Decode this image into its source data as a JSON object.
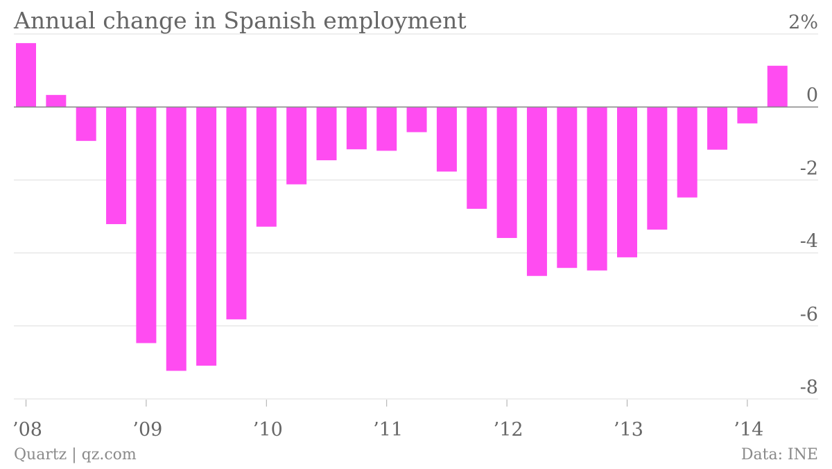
{
  "chart_data": {
    "type": "bar",
    "title": "Annual change in Spanish employment",
    "source": "Data: INE",
    "credit": "Quartz | qz.com",
    "xlabel": "",
    "ylabel": "",
    "ylim": [
      -8,
      2
    ],
    "y_ticks": [
      {
        "value": 2,
        "label": "2%"
      },
      {
        "value": 0,
        "label": "0"
      },
      {
        "value": -2,
        "label": "-2"
      },
      {
        "value": -4,
        "label": "-4"
      },
      {
        "value": -6,
        "label": "-6"
      },
      {
        "value": -8,
        "label": "-8"
      }
    ],
    "x_ticks": [
      {
        "index": 0,
        "label": "’08"
      },
      {
        "index": 4,
        "label": "’09"
      },
      {
        "index": 8,
        "label": "’10"
      },
      {
        "index": 12,
        "label": "’11"
      },
      {
        "index": 16,
        "label": "’12"
      },
      {
        "index": 20,
        "label": "’13"
      },
      {
        "index": 24,
        "label": "’14"
      }
    ],
    "categories": [
      "Q1 2008",
      "Q2 2008",
      "Q3 2008",
      "Q4 2008",
      "Q1 2009",
      "Q2 2009",
      "Q3 2009",
      "Q4 2009",
      "Q1 2010",
      "Q2 2010",
      "Q3 2010",
      "Q4 2010",
      "Q1 2011",
      "Q2 2011",
      "Q3 2011",
      "Q4 2011",
      "Q1 2012",
      "Q2 2012",
      "Q3 2012",
      "Q4 2012",
      "Q1 2013",
      "Q2 2013",
      "Q3 2013",
      "Q4 2013",
      "Q1 2014",
      "Q2 2014"
    ],
    "values": [
      1.75,
      0.33,
      -0.93,
      -3.21,
      -6.47,
      -7.23,
      -7.09,
      -5.82,
      -3.28,
      -2.12,
      -1.46,
      -1.16,
      -1.2,
      -0.69,
      -1.77,
      -2.79,
      -3.59,
      -4.63,
      -4.41,
      -4.48,
      -4.12,
      -3.36,
      -2.48,
      -1.17,
      -0.45,
      1.13
    ],
    "bar_color": "#ff4cf1",
    "grid": true
  }
}
